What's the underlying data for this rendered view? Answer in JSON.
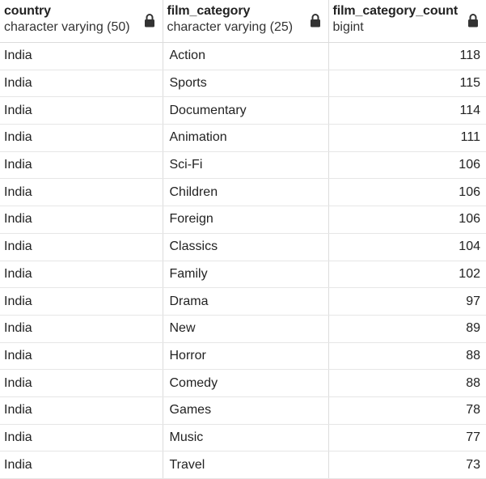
{
  "columns": [
    {
      "name": "country",
      "type": "character varying (50)",
      "icon": "lock-icon"
    },
    {
      "name": "film_category",
      "type": "character varying (25)",
      "icon": "lock-icon"
    },
    {
      "name": "film_category_count",
      "type": "bigint",
      "icon": "lock-icon"
    }
  ],
  "rows": [
    {
      "country": "India",
      "film_category": "Action",
      "film_category_count": "118"
    },
    {
      "country": "India",
      "film_category": "Sports",
      "film_category_count": "115"
    },
    {
      "country": "India",
      "film_category": "Documentary",
      "film_category_count": "114"
    },
    {
      "country": "India",
      "film_category": "Animation",
      "film_category_count": "111"
    },
    {
      "country": "India",
      "film_category": "Sci-Fi",
      "film_category_count": "106"
    },
    {
      "country": "India",
      "film_category": "Children",
      "film_category_count": "106"
    },
    {
      "country": "India",
      "film_category": "Foreign",
      "film_category_count": "106"
    },
    {
      "country": "India",
      "film_category": "Classics",
      "film_category_count": "104"
    },
    {
      "country": "India",
      "film_category": "Family",
      "film_category_count": "102"
    },
    {
      "country": "India",
      "film_category": "Drama",
      "film_category_count": "97"
    },
    {
      "country": "India",
      "film_category": "New",
      "film_category_count": "89"
    },
    {
      "country": "India",
      "film_category": "Horror",
      "film_category_count": "88"
    },
    {
      "country": "India",
      "film_category": "Comedy",
      "film_category_count": "88"
    },
    {
      "country": "India",
      "film_category": "Games",
      "film_category_count": "78"
    },
    {
      "country": "India",
      "film_category": "Music",
      "film_category_count": "77"
    },
    {
      "country": "India",
      "film_category": "Travel",
      "film_category_count": "73"
    }
  ]
}
